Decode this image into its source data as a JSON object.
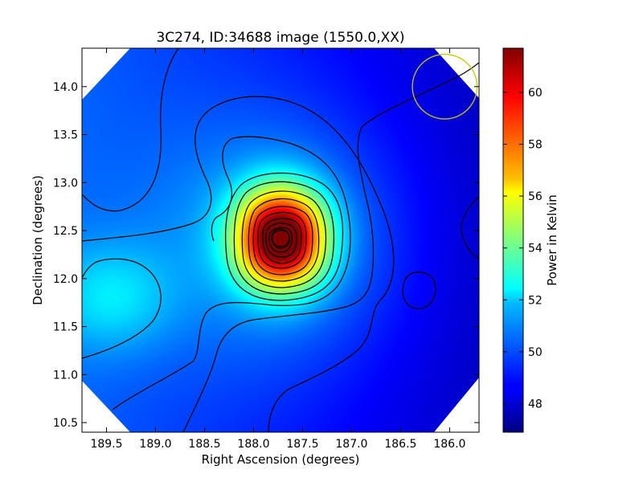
{
  "chart_data": {
    "type": "heatmap",
    "title": "3C274, ID:34688 image (1550.0,XX)",
    "xlabel": "Right Ascension (degrees)",
    "ylabel": "Declination (degrees)",
    "colorbar_label": "Power in Kelvin",
    "colormap": "jet",
    "xlim": [
      189.75,
      185.7
    ],
    "ylim": [
      10.4,
      14.4
    ],
    "xticks": [
      "189.5",
      "189.0",
      "188.5",
      "188.0",
      "187.5",
      "187.0",
      "186.5",
      "186.0"
    ],
    "yticks": [
      "10.5",
      "11.0",
      "11.5",
      "12.0",
      "12.5",
      "13.0",
      "13.5",
      "14.0"
    ],
    "colorbar_range": [
      46.9,
      61.7
    ],
    "colorbar_ticks": [
      "48",
      "50",
      "52",
      "54",
      "56",
      "58",
      "60"
    ],
    "peak": {
      "ra": 187.72,
      "dec": 12.42,
      "value": 61.5
    },
    "secondary_peak": {
      "ra": 189.45,
      "dec": 11.8,
      "value": 51.5
    },
    "background_level": 48.5,
    "contour_count": 14,
    "beam": {
      "ra": 186.05,
      "dec": 14.0,
      "radius_deg": 0.33,
      "color": "#c8c800"
    }
  }
}
